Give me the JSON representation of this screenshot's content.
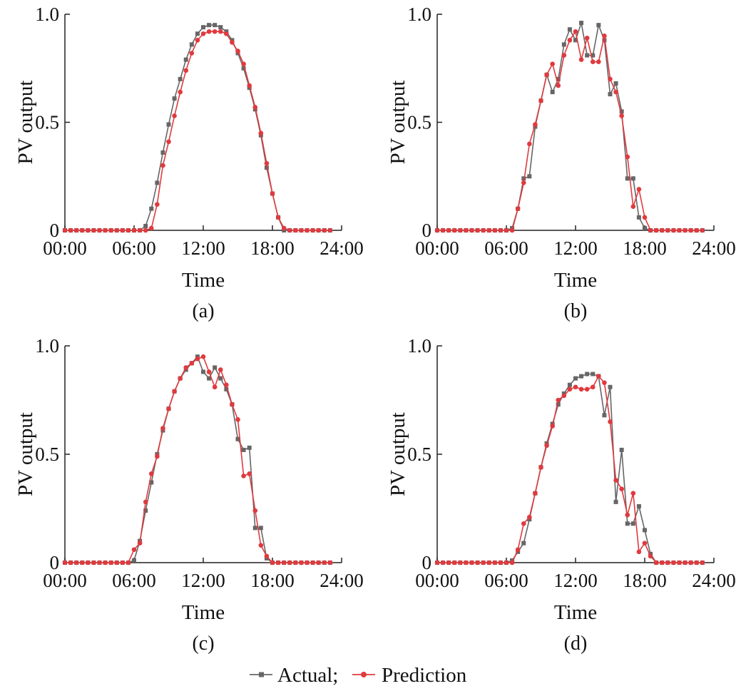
{
  "chart_data": [
    {
      "type": "line",
      "panel_label": "(a)",
      "xlabel": "Time",
      "ylabel": "PV output",
      "xlim": [
        0,
        24
      ],
      "ylim": [
        0,
        1.0
      ],
      "xticks": [
        "00:00",
        "06:00",
        "12:00",
        "18:00",
        "24:00"
      ],
      "yticks": [
        "0",
        "0.5",
        "1.0"
      ],
      "grid": false,
      "series": [
        {
          "name": "Actual",
          "color": "#666666",
          "marker": "square",
          "x": [
            0,
            0.5,
            1,
            1.5,
            2,
            2.5,
            3,
            3.5,
            4,
            4.5,
            5,
            5.5,
            6,
            6.5,
            7,
            7.5,
            8,
            8.5,
            9,
            9.5,
            10,
            10.5,
            11,
            11.5,
            12,
            12.5,
            13,
            13.5,
            14,
            14.5,
            15,
            15.5,
            16,
            16.5,
            17,
            17.5,
            18,
            18.5,
            19,
            19.5,
            20,
            20.5,
            21,
            21.5,
            22,
            22.5,
            23
          ],
          "y": [
            0,
            0,
            0,
            0,
            0,
            0,
            0,
            0,
            0,
            0,
            0,
            0,
            0,
            0,
            0.02,
            0.1,
            0.22,
            0.36,
            0.49,
            0.61,
            0.7,
            0.79,
            0.86,
            0.91,
            0.94,
            0.95,
            0.95,
            0.94,
            0.92,
            0.88,
            0.82,
            0.75,
            0.66,
            0.56,
            0.44,
            0.29,
            0.17,
            0.06,
            0,
            0,
            0,
            0,
            0,
            0,
            0,
            0,
            0
          ]
        },
        {
          "name": "Prediction",
          "color": "#e03a3e",
          "marker": "circle",
          "x": [
            0,
            0.5,
            1,
            1.5,
            2,
            2.5,
            3,
            3.5,
            4,
            4.5,
            5,
            5.5,
            6,
            6.5,
            7,
            7.5,
            8,
            8.5,
            9,
            9.5,
            10,
            10.5,
            11,
            11.5,
            12,
            12.5,
            13,
            13.5,
            14,
            14.5,
            15,
            15.5,
            16,
            16.5,
            17,
            17.5,
            18,
            18.5,
            19,
            19.5,
            20,
            20.5,
            21,
            21.5,
            22,
            22.5,
            23
          ],
          "y": [
            0,
            0,
            0,
            0,
            0,
            0,
            0,
            0,
            0,
            0,
            0,
            0,
            0,
            0,
            0,
            0.01,
            0.12,
            0.3,
            0.41,
            0.53,
            0.64,
            0.74,
            0.82,
            0.88,
            0.91,
            0.92,
            0.92,
            0.92,
            0.91,
            0.87,
            0.83,
            0.77,
            0.67,
            0.57,
            0.45,
            0.31,
            0.17,
            0.06,
            0.01,
            0,
            0,
            0,
            0,
            0,
            0,
            0,
            0
          ]
        }
      ]
    },
    {
      "type": "line",
      "panel_label": "(b)",
      "xlabel": "Time",
      "ylabel": "PV output",
      "xlim": [
        0,
        24
      ],
      "ylim": [
        0,
        1.0
      ],
      "xticks": [
        "00:00",
        "06:00",
        "12:00",
        "18:00",
        "24:00"
      ],
      "yticks": [
        "0",
        "0.5",
        "1.0"
      ],
      "grid": false,
      "series": [
        {
          "name": "Actual",
          "color": "#666666",
          "marker": "square",
          "x": [
            0,
            0.5,
            1,
            1.5,
            2,
            2.5,
            3,
            3.5,
            4,
            4.5,
            5,
            5.5,
            6,
            6.5,
            7,
            7.5,
            8,
            8.5,
            9,
            9.5,
            10,
            10.5,
            11,
            11.5,
            12,
            12.5,
            13,
            13.5,
            14,
            14.5,
            15,
            15.5,
            16,
            16.5,
            17,
            17.5,
            18,
            18.5,
            19,
            19.5,
            20,
            20.5,
            21,
            21.5,
            22,
            22.5,
            23
          ],
          "y": [
            0,
            0,
            0,
            0,
            0,
            0,
            0,
            0,
            0,
            0,
            0,
            0,
            0,
            0.01,
            0.1,
            0.24,
            0.25,
            0.48,
            0.6,
            0.72,
            0.64,
            0.7,
            0.86,
            0.93,
            0.88,
            0.96,
            0.81,
            0.81,
            0.95,
            0.88,
            0.63,
            0.68,
            0.55,
            0.24,
            0.24,
            0.06,
            0.01,
            0,
            0,
            0,
            0,
            0,
            0,
            0,
            0,
            0,
            0
          ]
        },
        {
          "name": "Prediction",
          "color": "#e03a3e",
          "marker": "circle",
          "x": [
            0,
            0.5,
            1,
            1.5,
            2,
            2.5,
            3,
            3.5,
            4,
            4.5,
            5,
            5.5,
            6,
            6.5,
            7,
            7.5,
            8,
            8.5,
            9,
            9.5,
            10,
            10.5,
            11,
            11.5,
            12,
            12.5,
            13,
            13.5,
            14,
            14.5,
            15,
            15.5,
            16,
            16.5,
            17,
            17.5,
            18,
            18.5,
            19,
            19.5,
            20,
            20.5,
            21,
            21.5,
            22,
            22.5,
            23
          ],
          "y": [
            0,
            0,
            0,
            0,
            0,
            0,
            0,
            0,
            0,
            0,
            0,
            0,
            0,
            0,
            0.1,
            0.22,
            0.4,
            0.49,
            0.6,
            0.72,
            0.77,
            0.67,
            0.81,
            0.88,
            0.92,
            0.79,
            0.89,
            0.78,
            0.78,
            0.9,
            0.7,
            0.64,
            0.53,
            0.34,
            0.11,
            0.19,
            0.06,
            0,
            0,
            0,
            0,
            0,
            0,
            0,
            0,
            0,
            0
          ]
        }
      ]
    },
    {
      "type": "line",
      "panel_label": "(c)",
      "xlabel": "Time",
      "ylabel": "PV output",
      "xlim": [
        0,
        24
      ],
      "ylim": [
        0,
        1.0
      ],
      "xticks": [
        "00:00",
        "06:00",
        "12:00",
        "18:00",
        "24:00"
      ],
      "yticks": [
        "0",
        "0.5",
        "1.0"
      ],
      "grid": false,
      "series": [
        {
          "name": "Actual",
          "color": "#666666",
          "marker": "square",
          "x": [
            0,
            0.5,
            1,
            1.5,
            2,
            2.5,
            3,
            3.5,
            4,
            4.5,
            5,
            5.5,
            6,
            6.5,
            7,
            7.5,
            8,
            8.5,
            9,
            9.5,
            10,
            10.5,
            11,
            11.5,
            12,
            12.5,
            13,
            13.5,
            14,
            14.5,
            15,
            15.5,
            16,
            16.5,
            17,
            17.5,
            18,
            18.5,
            19,
            19.5,
            20,
            20.5,
            21,
            21.5,
            22,
            22.5,
            23
          ],
          "y": [
            0,
            0,
            0,
            0,
            0,
            0,
            0,
            0,
            0,
            0,
            0,
            0,
            0.01,
            0.1,
            0.24,
            0.37,
            0.5,
            0.61,
            0.71,
            0.79,
            0.85,
            0.89,
            0.92,
            0.95,
            0.88,
            0.85,
            0.9,
            0.85,
            0.8,
            0.73,
            0.57,
            0.52,
            0.53,
            0.16,
            0.16,
            0.02,
            0,
            0,
            0,
            0,
            0,
            0,
            0,
            0,
            0,
            0,
            0
          ]
        },
        {
          "name": "Prediction",
          "color": "#e03a3e",
          "marker": "circle",
          "x": [
            0,
            0.5,
            1,
            1.5,
            2,
            2.5,
            3,
            3.5,
            4,
            4.5,
            5,
            5.5,
            6,
            6.5,
            7,
            7.5,
            8,
            8.5,
            9,
            9.5,
            10,
            10.5,
            11,
            11.5,
            12,
            12.5,
            13,
            13.5,
            14,
            14.5,
            15,
            15.5,
            16,
            16.5,
            17,
            17.5,
            18,
            18.5,
            19,
            19.5,
            20,
            20.5,
            21,
            21.5,
            22,
            22.5,
            23
          ],
          "y": [
            0,
            0,
            0,
            0,
            0,
            0,
            0,
            0,
            0,
            0,
            0,
            0,
            0.06,
            0.09,
            0.28,
            0.41,
            0.49,
            0.62,
            0.71,
            0.79,
            0.85,
            0.9,
            0.92,
            0.94,
            0.95,
            0.88,
            0.81,
            0.89,
            0.82,
            0.73,
            0.66,
            0.4,
            0.41,
            0.24,
            0.08,
            0.03,
            0,
            0,
            0,
            0,
            0,
            0,
            0,
            0,
            0,
            0,
            0
          ]
        }
      ]
    },
    {
      "type": "line",
      "panel_label": "(d)",
      "xlabel": "Time",
      "ylabel": "PV output",
      "xlim": [
        0,
        24
      ],
      "ylim": [
        0,
        1.0
      ],
      "xticks": [
        "00:00",
        "06:00",
        "12:00",
        "18:00",
        "24:00"
      ],
      "yticks": [
        "0",
        "0.5",
        "1.0"
      ],
      "grid": false,
      "series": [
        {
          "name": "Actual",
          "color": "#666666",
          "marker": "square",
          "x": [
            0,
            0.5,
            1,
            1.5,
            2,
            2.5,
            3,
            3.5,
            4,
            4.5,
            5,
            5.5,
            6,
            6.5,
            7,
            7.5,
            8,
            8.5,
            9,
            9.5,
            10,
            10.5,
            11,
            11.5,
            12,
            12.5,
            13,
            13.5,
            14,
            14.5,
            15,
            15.5,
            16,
            16.5,
            17,
            17.5,
            18,
            18.5,
            19,
            19.5,
            20,
            20.5,
            21,
            21.5,
            22,
            22.5,
            23
          ],
          "y": [
            0,
            0,
            0,
            0,
            0,
            0,
            0,
            0,
            0,
            0,
            0,
            0,
            0,
            0.01,
            0.05,
            0.09,
            0.2,
            0.32,
            0.44,
            0.55,
            0.64,
            0.73,
            0.78,
            0.82,
            0.85,
            0.86,
            0.87,
            0.87,
            0.86,
            0.68,
            0.81,
            0.28,
            0.52,
            0.18,
            0.18,
            0.26,
            0.15,
            0.04,
            0,
            0,
            0,
            0,
            0,
            0,
            0,
            0,
            0
          ]
        },
        {
          "name": "Prediction",
          "color": "#e03a3e",
          "marker": "circle",
          "x": [
            0,
            0.5,
            1,
            1.5,
            2,
            2.5,
            3,
            3.5,
            4,
            4.5,
            5,
            5.5,
            6,
            6.5,
            7,
            7.5,
            8,
            8.5,
            9,
            9.5,
            10,
            10.5,
            11,
            11.5,
            12,
            12.5,
            13,
            13.5,
            14,
            14.5,
            15,
            15.5,
            16,
            16.5,
            17,
            17.5,
            18,
            18.5,
            19,
            19.5,
            20,
            20.5,
            21,
            21.5,
            22,
            22.5,
            23
          ],
          "y": [
            0,
            0,
            0,
            0,
            0,
            0,
            0,
            0,
            0,
            0,
            0,
            0,
            0,
            0,
            0.06,
            0.18,
            0.21,
            0.32,
            0.44,
            0.54,
            0.63,
            0.75,
            0.77,
            0.8,
            0.81,
            0.8,
            0.8,
            0.81,
            0.86,
            0.83,
            0.65,
            0.38,
            0.34,
            0.22,
            0.32,
            0.05,
            0.09,
            0.03,
            0,
            0,
            0,
            0,
            0,
            0,
            0,
            0,
            0
          ]
        }
      ]
    }
  ],
  "legend": {
    "placement": "bottom-center",
    "items": [
      {
        "label": "Actual;",
        "color": "#666666",
        "marker": "square"
      },
      {
        "label": "Prediction",
        "color": "#e03a3e",
        "marker": "circle"
      }
    ]
  }
}
